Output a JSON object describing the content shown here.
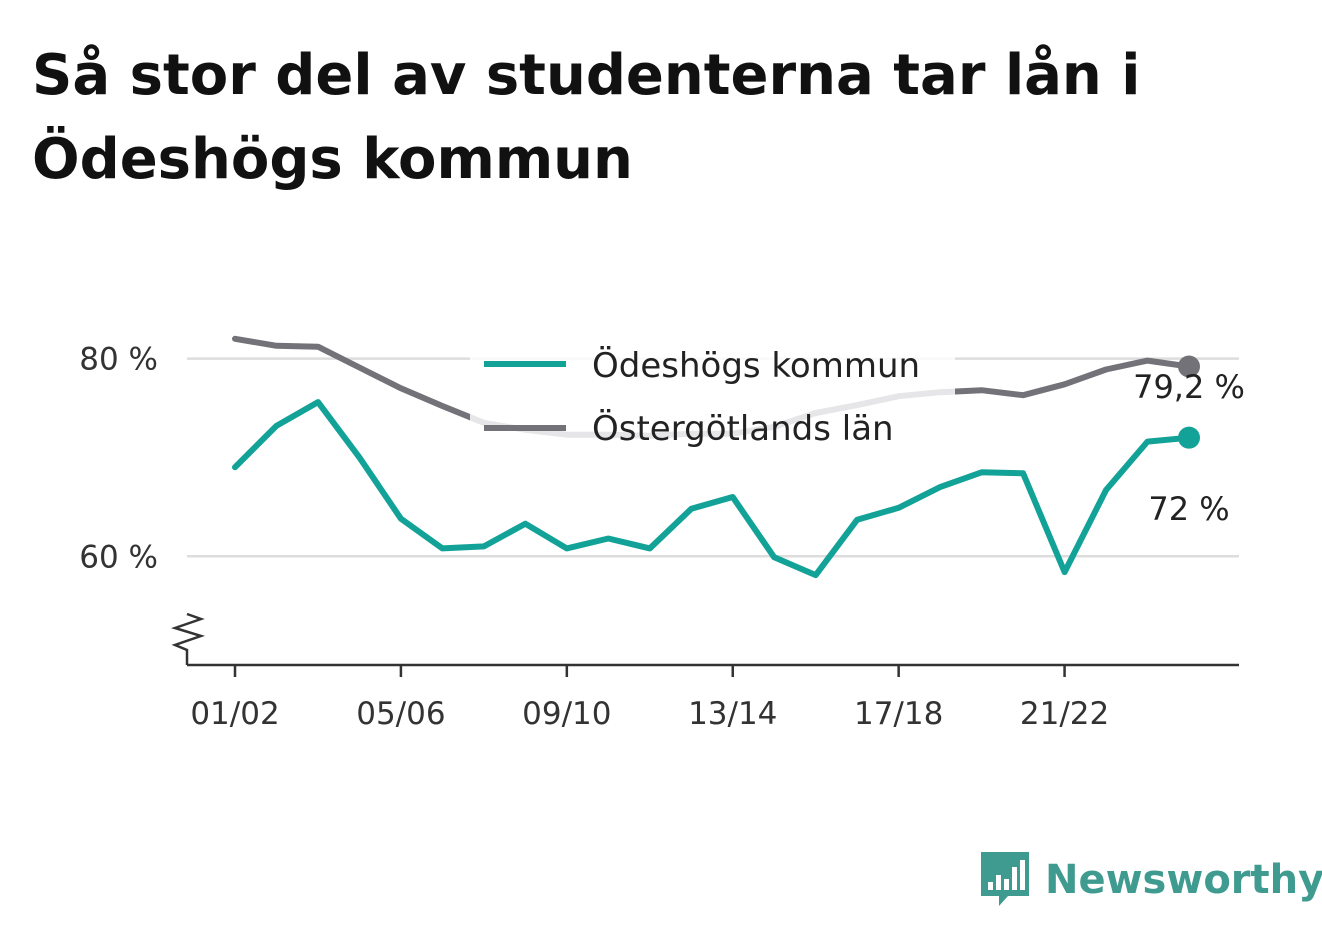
{
  "title_lines": [
    "Så stor del av studenterna tar lån i",
    "Ödeshögs kommun"
  ],
  "brand": {
    "name": "Newsworthy",
    "icon": "newsworthy-bar-chart-logo-icon",
    "color": "#3f9a8f"
  },
  "chart_data": {
    "type": "line",
    "x": [
      "01/02",
      "02/03",
      "03/04",
      "04/05",
      "05/06",
      "06/07",
      "07/08",
      "08/09",
      "09/10",
      "10/11",
      "11/12",
      "12/13",
      "13/14",
      "14/15",
      "15/16",
      "16/17",
      "17/18",
      "18/19",
      "19/20",
      "20/21",
      "21/22",
      "22/23",
      "23/24",
      "24/25"
    ],
    "x_tick_labels": [
      "01/02",
      "05/06",
      "09/10",
      "13/14",
      "17/18",
      "21/22"
    ],
    "y_ticks": [
      60,
      80
    ],
    "y_tick_labels": [
      "60 %",
      "80 %"
    ],
    "ylim": [
      49,
      92
    ],
    "y_axis_break": true,
    "grid": true,
    "legend_position": "top-center",
    "series": [
      {
        "name": "Ödeshögs kommun",
        "color": "#12a297",
        "values": [
          69.0,
          73.2,
          75.6,
          70.0,
          63.8,
          60.8,
          61.0,
          63.3,
          60.8,
          61.8,
          60.8,
          64.8,
          66.0,
          59.9,
          58.1,
          63.7,
          64.9,
          67.0,
          68.5,
          68.4,
          58.4,
          66.7,
          71.6,
          72.0
        ],
        "end_label": "72 %"
      },
      {
        "name": "Östergötlands län",
        "color": "#737278",
        "values": [
          82.0,
          81.3,
          81.2,
          79.1,
          77.0,
          75.2,
          73.5,
          72.8,
          72.3,
          72.3,
          72.2,
          72.4,
          72.4,
          73.1,
          74.5,
          75.3,
          76.2,
          76.6,
          76.8,
          76.3,
          77.4,
          78.9,
          79.8,
          79.2
        ],
        "end_label": "79,2 %"
      }
    ]
  }
}
